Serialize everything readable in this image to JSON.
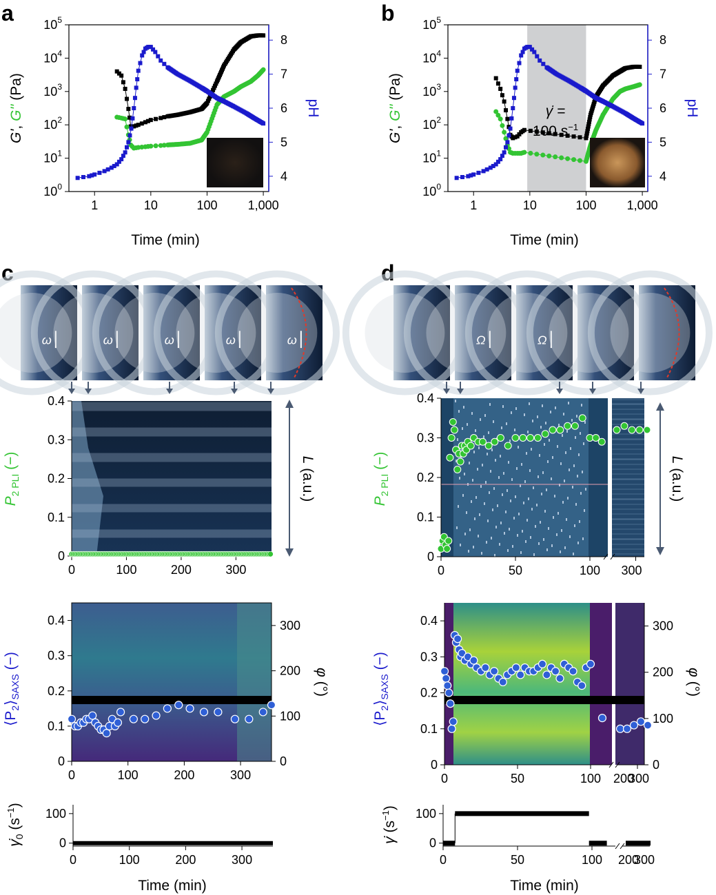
{
  "panels": {
    "a": {
      "letter": "a"
    },
    "b": {
      "letter": "b"
    },
    "c": {
      "letter": "c"
    },
    "d": {
      "letter": "d"
    }
  },
  "labels": {
    "time_min": "Time (min)",
    "gprime_a": "G'",
    "comma": ", ",
    "gdouble": "G''",
    "pa": " (Pa)",
    "ph": "pH",
    "shear_rate": "100 s",
    "shear_minus1": "−1",
    "gamma_eq": "γ̇ =",
    "p2pli": "P",
    "p2pli_sub": "2 PLI",
    "p2pli_unit": " (−)",
    "L_au": "L (a.u.)",
    "p2saxs": "⟨P",
    "p2saxs_sub2": "2",
    "p2saxs_close": "⟩",
    "p2saxs_sub": "SAXS",
    "p2saxs_unit": " (−)",
    "phi_deg": "φ (°)",
    "gamma0": "γ̇",
    "gamma0_sub": "0",
    "gamma_unit": " (s",
    "gamma_unit_exp": "−1",
    "gamma_unit_close": ")",
    "omega_small": "ω",
    "omega_big": "Ω"
  },
  "colors": {
    "blue": "#1a1acc",
    "green": "#33c433",
    "black": "#000000",
    "gray_band": "#cfd0d2",
    "slate": "#4a5a72",
    "saxs_blue": "#2f5fd6"
  },
  "chart_data": [
    {
      "id": "a",
      "type": "scatter",
      "xlabel": "Time (min)",
      "ylabel": "G', G'' (Pa)",
      "y2label": "pH",
      "xscale": "log",
      "yscale": "log",
      "xlim": [
        0.35,
        1250
      ],
      "ylim": [
        1,
        100000
      ],
      "y2lim": [
        3.55,
        8.45
      ],
      "x_ticks": [
        "1",
        "10",
        "100",
        "1,000"
      ],
      "y_ticks": [
        "10⁰",
        "10¹",
        "10²",
        "10³",
        "10⁴",
        "10⁵"
      ],
      "y2_ticks": [
        "4",
        "5",
        "6",
        "7",
        "8"
      ],
      "series": [
        {
          "name": "G'",
          "color": "#000000",
          "x": [
            2.5,
            3.0,
            3.5,
            4.0,
            4.4,
            5,
            6,
            8,
            10,
            15,
            20,
            30,
            50,
            80,
            100,
            150,
            200,
            300,
            400,
            600,
            800,
            1000
          ],
          "y": [
            4000,
            3000,
            1200,
            300,
            90,
            90,
            100,
            120,
            140,
            160,
            180,
            200,
            240,
            300,
            450,
            2000,
            6000,
            18000,
            30000,
            45000,
            48000,
            48000
          ]
        },
        {
          "name": "G''",
          "color": "#33c433",
          "x": [
            2.5,
            3.0,
            3.5,
            4.0,
            4.4,
            5,
            6,
            8,
            10,
            15,
            20,
            30,
            50,
            80,
            100,
            150,
            200,
            300,
            400,
            600,
            800,
            1000
          ],
          "y": [
            170,
            160,
            150,
            50,
            25,
            20,
            21,
            22,
            23,
            24,
            25,
            26,
            28,
            35,
            60,
            400,
            700,
            1000,
            1400,
            2000,
            3000,
            4500
          ]
        },
        {
          "name": "pH",
          "color": "#1a1acc",
          "x": [
            0.5,
            0.8,
            1,
            1.5,
            2,
            2.5,
            3,
            3.5,
            4,
            4.5,
            5,
            5.5,
            6,
            7,
            8,
            9,
            10,
            12,
            15,
            20,
            30,
            50,
            80,
            100,
            150,
            200,
            300,
            500,
            700,
            1000
          ],
          "y": [
            3.95,
            4.0,
            4.05,
            4.15,
            4.25,
            4.35,
            4.5,
            4.7,
            5.0,
            5.4,
            6.0,
            6.6,
            7.1,
            7.55,
            7.75,
            7.8,
            7.8,
            7.65,
            7.4,
            7.2,
            7.0,
            6.8,
            6.6,
            6.5,
            6.3,
            6.2,
            6.05,
            5.85,
            5.7,
            5.55
          ]
        }
      ]
    },
    {
      "id": "b",
      "type": "scatter",
      "xlabel": "Time (min)",
      "ylabel": "G', G'' (Pa)",
      "y2label": "pH",
      "xscale": "log",
      "yscale": "log",
      "xlim": [
        0.35,
        1250
      ],
      "ylim": [
        1,
        100000
      ],
      "y2lim": [
        3.55,
        8.45
      ],
      "shaded_region_x": [
        9,
        100
      ],
      "annotation": "γ̇ = 100 s−1",
      "series": [
        {
          "name": "G'",
          "color": "#000000",
          "x": [
            2.5,
            3.0,
            3.5,
            4.0,
            4.5,
            5,
            6,
            7,
            8,
            100,
            120,
            150,
            200,
            300,
            400,
            500,
            700,
            900
          ],
          "y": [
            2500,
            1200,
            500,
            150,
            50,
            40,
            45,
            60,
            70,
            40,
            200,
            700,
            1500,
            3000,
            4000,
            5000,
            5500,
            5500
          ]
        },
        {
          "name": "G''",
          "color": "#33c433",
          "x": [
            2.5,
            3.0,
            3.5,
            4.0,
            4.5,
            5,
            6,
            7,
            8,
            100,
            120,
            150,
            200,
            300,
            400,
            500,
            700,
            900
          ],
          "y": [
            250,
            150,
            60,
            25,
            15,
            14,
            14,
            14,
            15,
            8,
            25,
            70,
            200,
            600,
            1000,
            1200,
            1400,
            1600
          ]
        },
        {
          "name": "pH",
          "color": "#1a1acc",
          "x": [
            0.5,
            0.8,
            1,
            1.5,
            2,
            2.5,
            3,
            3.5,
            4,
            4.5,
            5,
            5.5,
            6,
            7,
            8,
            9,
            10,
            12,
            15,
            20,
            30,
            50,
            80,
            100,
            150,
            200,
            300,
            500,
            700,
            1000
          ],
          "y": [
            3.95,
            4.0,
            4.05,
            4.15,
            4.25,
            4.35,
            4.5,
            4.7,
            5.0,
            5.4,
            6.0,
            6.6,
            7.1,
            7.55,
            7.75,
            7.8,
            7.8,
            7.65,
            7.4,
            7.2,
            7.0,
            6.8,
            6.6,
            6.5,
            6.3,
            6.2,
            6.05,
            5.85,
            5.7,
            5.55
          ]
        }
      ]
    },
    {
      "id": "c-pli",
      "type": "scatter",
      "ylabel": "P2 PLI (−)",
      "y2label": "L (a.u.)",
      "xlim": [
        0,
        365
      ],
      "ylim": [
        0,
        0.4
      ],
      "x_ticks": [
        0,
        100,
        200,
        300
      ],
      "y_ticks": [
        0,
        0.1,
        0.2,
        0.3,
        0.4
      ],
      "series": [
        {
          "name": "P2 PLI",
          "color": "#33c433",
          "x_range": [
            0,
            365
          ],
          "y_constant": 0.005
        }
      ]
    },
    {
      "id": "c-saxs",
      "type": "scatter",
      "ylabel": "⟨P2⟩SAXS (−)",
      "y2label": "φ (°)",
      "xlim": [
        0,
        355
      ],
      "ylim": [
        0,
        0.45
      ],
      "y2lim": [
        0,
        350
      ],
      "x_ticks": [
        0,
        100,
        200,
        300
      ],
      "y_ticks": [
        0,
        0.1,
        0.2,
        0.3,
        0.4
      ],
      "y2_ticks": [
        0,
        100,
        200,
        300
      ],
      "series": [
        {
          "name": "P2 SAXS",
          "color": "#2f5fd6",
          "x": [
            0,
            6,
            11,
            16,
            21,
            26,
            31,
            37,
            42,
            47,
            52,
            57,
            62,
            67,
            72,
            77,
            82,
            87,
            110,
            130,
            150,
            170,
            190,
            210,
            235,
            260,
            290,
            315,
            340,
            355
          ],
          "y": [
            0.12,
            0.1,
            0.1,
            0.11,
            0.11,
            0.12,
            0.12,
            0.13,
            0.11,
            0.1,
            0.09,
            0.09,
            0.08,
            0.1,
            0.12,
            0.1,
            0.11,
            0.14,
            0.12,
            0.12,
            0.13,
            0.15,
            0.16,
            0.15,
            0.14,
            0.14,
            0.12,
            0.12,
            0.14,
            0.16
          ]
        }
      ]
    },
    {
      "id": "c-shear",
      "type": "line",
      "xlabel": "Time (min)",
      "ylabel": "γ̇0 (s−1)",
      "xlim": [
        0,
        355
      ],
      "ylim": [
        -10,
        130
      ],
      "x_ticks": [
        0,
        100,
        200,
        300
      ],
      "y_ticks": [
        0,
        100
      ],
      "series": [
        {
          "name": "γ̇0",
          "color": "#000000",
          "x": [
            0,
            355
          ],
          "y": [
            0,
            0
          ]
        }
      ]
    },
    {
      "id": "d-pli",
      "type": "scatter",
      "ylabel": "P2 PLI (−)",
      "y2label": "L (a.u.)",
      "ylim": [
        0,
        0.4
      ],
      "x_ticks": [
        "0",
        "50",
        "100",
        "300"
      ],
      "y_ticks": [
        0,
        0.1,
        0.2,
        0.3,
        0.4
      ],
      "series": [
        {
          "name": "P2 PLI",
          "color": "#33c433",
          "x": [
            0,
            1,
            2,
            3,
            4,
            5,
            6,
            7,
            8,
            9,
            10,
            11,
            12,
            13,
            14,
            15,
            16,
            17,
            18,
            20,
            22,
            25,
            28,
            32,
            36,
            40,
            45,
            50,
            55,
            60,
            65,
            70,
            75,
            80,
            85,
            90,
            95,
            100,
            104,
            108,
            250,
            270,
            290,
            310,
            330
          ],
          "y": [
            0.02,
            0.04,
            0.05,
            0.03,
            0.02,
            0.04,
            0.25,
            0.3,
            0.34,
            0.32,
            0.27,
            0.22,
            0.26,
            0.24,
            0.28,
            0.26,
            0.28,
            0.27,
            0.29,
            0.28,
            0.3,
            0.29,
            0.29,
            0.28,
            0.29,
            0.3,
            0.28,
            0.3,
            0.3,
            0.3,
            0.3,
            0.31,
            0.32,
            0.32,
            0.33,
            0.33,
            0.35,
            0.3,
            0.3,
            0.29,
            0.32,
            0.33,
            0.32,
            0.32,
            0.32
          ]
        }
      ]
    },
    {
      "id": "d-saxs",
      "type": "scatter",
      "ylabel": "⟨P2⟩SAXS (−)",
      "y2label": "φ (°)",
      "ylim": [
        0,
        0.45
      ],
      "y2lim": [
        0,
        350
      ],
      "x_ticks": [
        "0",
        "50",
        "100",
        "200",
        "300"
      ],
      "y_ticks": [
        0,
        0.1,
        0.2,
        0.3,
        0.4
      ],
      "y2_ticks": [
        0,
        100,
        200,
        300
      ],
      "series": [
        {
          "name": "P2 SAXS",
          "color": "#2f5fd6",
          "x": [
            0,
            1,
            2,
            3,
            4,
            5,
            6,
            7,
            8,
            9,
            10,
            11,
            12,
            14,
            16,
            18,
            20,
            22,
            25,
            28,
            31,
            34,
            37,
            40,
            43,
            46,
            49,
            52,
            55,
            58,
            61,
            64,
            67,
            70,
            73,
            76,
            79,
            82,
            85,
            88,
            91,
            94,
            97,
            100,
            108,
            250,
            270,
            290,
            310,
            330
          ],
          "y": [
            0.26,
            0.24,
            0.22,
            0.2,
            0.17,
            0.1,
            0.12,
            0.36,
            0.34,
            0.35,
            0.32,
            0.3,
            0.31,
            0.29,
            0.3,
            0.28,
            0.29,
            0.27,
            0.26,
            0.27,
            0.25,
            0.26,
            0.24,
            0.23,
            0.25,
            0.26,
            0.27,
            0.25,
            0.27,
            0.26,
            0.26,
            0.27,
            0.28,
            0.25,
            0.27,
            0.26,
            0.24,
            0.28,
            0.27,
            0.26,
            0.23,
            0.22,
            0.27,
            0.28,
            0.13,
            0.1,
            0.1,
            0.11,
            0.12,
            0.11
          ]
        }
      ]
    },
    {
      "id": "d-shear",
      "type": "line",
      "xlabel": "Time (min)",
      "ylabel": "γ̇ (s−1)",
      "ylim": [
        -10,
        130
      ],
      "x_ticks": [
        "0",
        "50",
        "100",
        "200",
        "300"
      ],
      "y_ticks": [
        0,
        100
      ],
      "series": [
        {
          "name": "γ̇",
          "color": "#000000",
          "x": [
            0,
            8,
            8,
            98,
            98,
            110,
            200,
            330
          ],
          "y": [
            0,
            0,
            100,
            100,
            0,
            0,
            0,
            0
          ]
        }
      ]
    }
  ]
}
